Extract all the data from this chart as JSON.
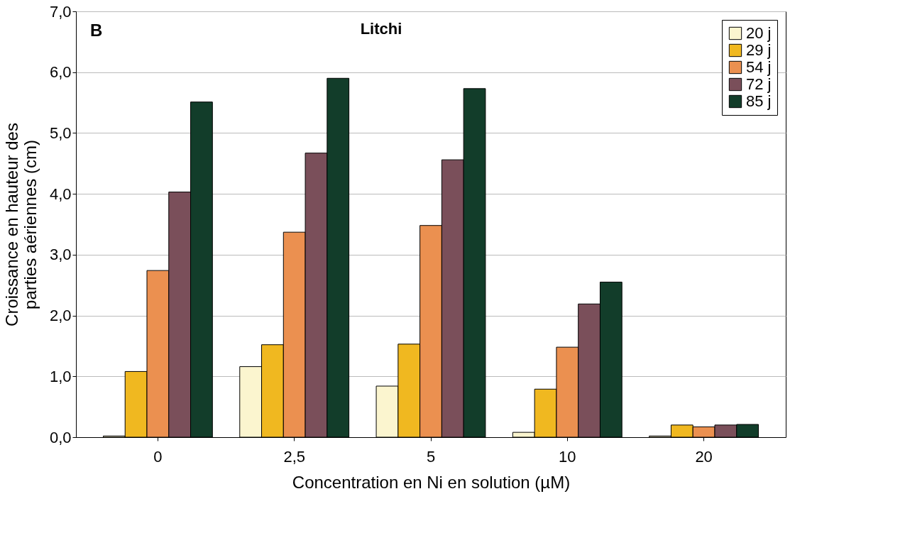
{
  "chart_data": {
    "type": "bar",
    "title": "Litchi",
    "xlabel": "Concentration en Ni en solution  (µM)",
    "ylabel": "Croissance en hauteur des\nparties aériennes  (cm)",
    "annotations": [
      "B"
    ],
    "categories": [
      "0",
      "2,5",
      "5",
      "10",
      "20"
    ],
    "series": [
      {
        "name": "20 j",
        "color": "#fbf5cf",
        "values": [
          0.02,
          1.16,
          0.84,
          0.08,
          0.02
        ]
      },
      {
        "name": "29 j",
        "color": "#f0b820",
        "values": [
          1.08,
          1.52,
          1.53,
          0.79,
          0.2
        ]
      },
      {
        "name": "54 j",
        "color": "#eb9050",
        "values": [
          2.74,
          3.37,
          3.48,
          1.48,
          0.17
        ]
      },
      {
        "name": "72 j",
        "color": "#7a4f5a",
        "values": [
          4.03,
          4.67,
          4.56,
          2.19,
          0.2
        ]
      },
      {
        "name": "85 j",
        "color": "#123d2a",
        "values": [
          5.51,
          5.9,
          5.73,
          2.55,
          0.21
        ]
      }
    ],
    "ylim": [
      0,
      7
    ],
    "yticks": [
      {
        "value": 0,
        "label": "0,0"
      },
      {
        "value": 1,
        "label": "1,0"
      },
      {
        "value": 2,
        "label": "2,0"
      },
      {
        "value": 3,
        "label": "3,0"
      },
      {
        "value": 4,
        "label": "4,0"
      },
      {
        "value": 5,
        "label": "5,0"
      },
      {
        "value": 6,
        "label": "6,0"
      },
      {
        "value": 7,
        "label": "7,0"
      }
    ],
    "grid": "y",
    "legend": "top right"
  }
}
